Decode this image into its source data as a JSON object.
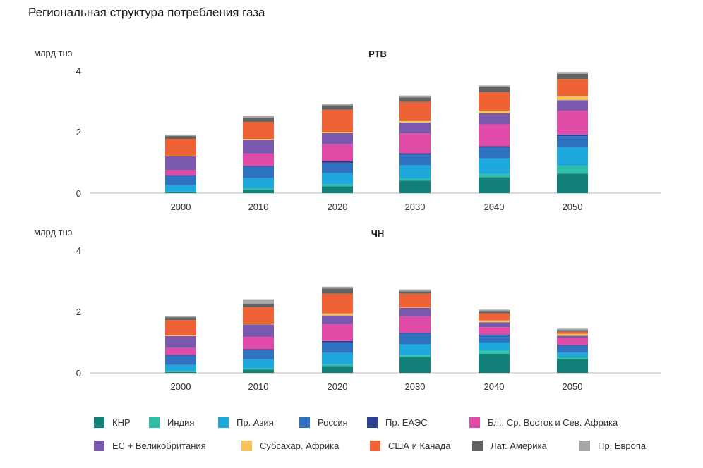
{
  "page": {
    "title": "Региональная структура потребления газа"
  },
  "chart_data": [
    {
      "type": "bar",
      "stacked": true,
      "title": "РТВ",
      "ylabel": "млрд тнэ",
      "yticks": [
        0,
        2,
        4
      ],
      "ylim": [
        0,
        4
      ],
      "categories": [
        "2000",
        "2010",
        "2020",
        "2030",
        "2040",
        "2050"
      ],
      "series": [
        {
          "name": "КНР",
          "values": [
            0.03,
            0.11,
            0.22,
            0.41,
            0.52,
            0.64
          ]
        },
        {
          "name": "Индия",
          "values": [
            0.02,
            0.05,
            0.06,
            0.06,
            0.11,
            0.25
          ]
        },
        {
          "name": "Пр. Азия",
          "values": [
            0.21,
            0.33,
            0.37,
            0.44,
            0.5,
            0.61
          ]
        },
        {
          "name": "Россия",
          "values": [
            0.3,
            0.37,
            0.34,
            0.34,
            0.35,
            0.36
          ]
        },
        {
          "name": "Пр. ЕАЭС",
          "values": [
            0.03,
            0.03,
            0.05,
            0.05,
            0.05,
            0.05
          ]
        },
        {
          "name": "Бл., Ср. Восток и Сев. Африка",
          "values": [
            0.16,
            0.4,
            0.55,
            0.65,
            0.71,
            0.78
          ]
        },
        {
          "name": "ЕС + Великобритания",
          "values": [
            0.45,
            0.45,
            0.37,
            0.35,
            0.36,
            0.34
          ]
        },
        {
          "name": "Субсахар. Африка",
          "values": [
            0.02,
            0.03,
            0.04,
            0.07,
            0.09,
            0.14
          ]
        },
        {
          "name": "США и Канада",
          "values": [
            0.55,
            0.55,
            0.72,
            0.6,
            0.6,
            0.55
          ]
        },
        {
          "name": "Лат. Америка",
          "values": [
            0.09,
            0.13,
            0.14,
            0.15,
            0.16,
            0.17
          ]
        },
        {
          "name": "Пр. Европа",
          "values": [
            0.05,
            0.07,
            0.06,
            0.06,
            0.06,
            0.06
          ]
        }
      ]
    },
    {
      "type": "bar",
      "stacked": true,
      "title": "ЧН",
      "ylabel": "млрд тнэ",
      "yticks": [
        0,
        2,
        4
      ],
      "ylim": [
        0,
        4
      ],
      "categories": [
        "2000",
        "2010",
        "2020",
        "2030",
        "2040",
        "2050"
      ],
      "series": [
        {
          "name": "КНР",
          "values": [
            0.03,
            0.11,
            0.22,
            0.52,
            0.62,
            0.46
          ]
        },
        {
          "name": "Индия",
          "values": [
            0.02,
            0.05,
            0.06,
            0.05,
            0.12,
            0.06
          ]
        },
        {
          "name": "Пр. Азия",
          "values": [
            0.21,
            0.28,
            0.37,
            0.36,
            0.25,
            0.14
          ]
        },
        {
          "name": "Россия",
          "values": [
            0.3,
            0.3,
            0.34,
            0.34,
            0.23,
            0.22
          ]
        },
        {
          "name": "Пр. ЕАЭС",
          "values": [
            0.03,
            0.03,
            0.05,
            0.04,
            0.03,
            0.03
          ]
        },
        {
          "name": "Бл., Ср. Восток и Сев. Африка",
          "values": [
            0.22,
            0.4,
            0.55,
            0.53,
            0.24,
            0.23
          ]
        },
        {
          "name": "ЕС + Великобритания",
          "values": [
            0.39,
            0.41,
            0.28,
            0.28,
            0.16,
            0.07
          ]
        },
        {
          "name": "Субсахар. Африка",
          "values": [
            0.02,
            0.03,
            0.07,
            0.01,
            0.06,
            0.06
          ]
        },
        {
          "name": "США и Канада",
          "values": [
            0.5,
            0.53,
            0.64,
            0.45,
            0.23,
            0.07
          ]
        },
        {
          "name": "Лат. Америка",
          "values": [
            0.09,
            0.12,
            0.17,
            0.08,
            0.08,
            0.05
          ]
        },
        {
          "name": "Пр. Европа",
          "values": [
            0.05,
            0.14,
            0.06,
            0.06,
            0.04,
            0.05
          ]
        }
      ]
    }
  ],
  "legend": {
    "rows": [
      [
        {
          "name": "КНР",
          "color": "#13807a"
        },
        {
          "name": "Индия",
          "color": "#2fbfa9"
        },
        {
          "name": "Пр. Азия",
          "color": "#1fa8dc"
        },
        {
          "name": "Россия",
          "color": "#2f72c0"
        },
        {
          "name": "Пр. ЕАЭС",
          "color": "#2b4293"
        },
        {
          "name": "Бл., Ср. Восток и Сев. Африка",
          "color": "#df4ba6"
        }
      ],
      [
        {
          "name": "ЕС + Великобритания",
          "color": "#7a58ad"
        },
        {
          "name": "Субсахар. Африка",
          "color": "#f7c35c"
        },
        {
          "name": "США и Канада",
          "color": "#ef6236"
        },
        {
          "name": "Лат. Америка",
          "color": "#626262"
        },
        {
          "name": "Пр. Европа",
          "color": "#a6a6a6"
        }
      ]
    ]
  },
  "colors": {
    "КНР": "#13807a",
    "Индия": "#2fbfa9",
    "Пр. Азия": "#1fa8dc",
    "Россия": "#2f72c0",
    "Пр. ЕАЭС": "#2b4293",
    "Бл., Ср. Восток и Сев. Африка": "#df4ba6",
    "ЕС + Великобритания": "#7a58ad",
    "Субсахар. Африка": "#f7c35c",
    "США и Канада": "#ef6236",
    "Лат. Америка": "#626262",
    "Пр. Европа": "#a6a6a6"
  }
}
